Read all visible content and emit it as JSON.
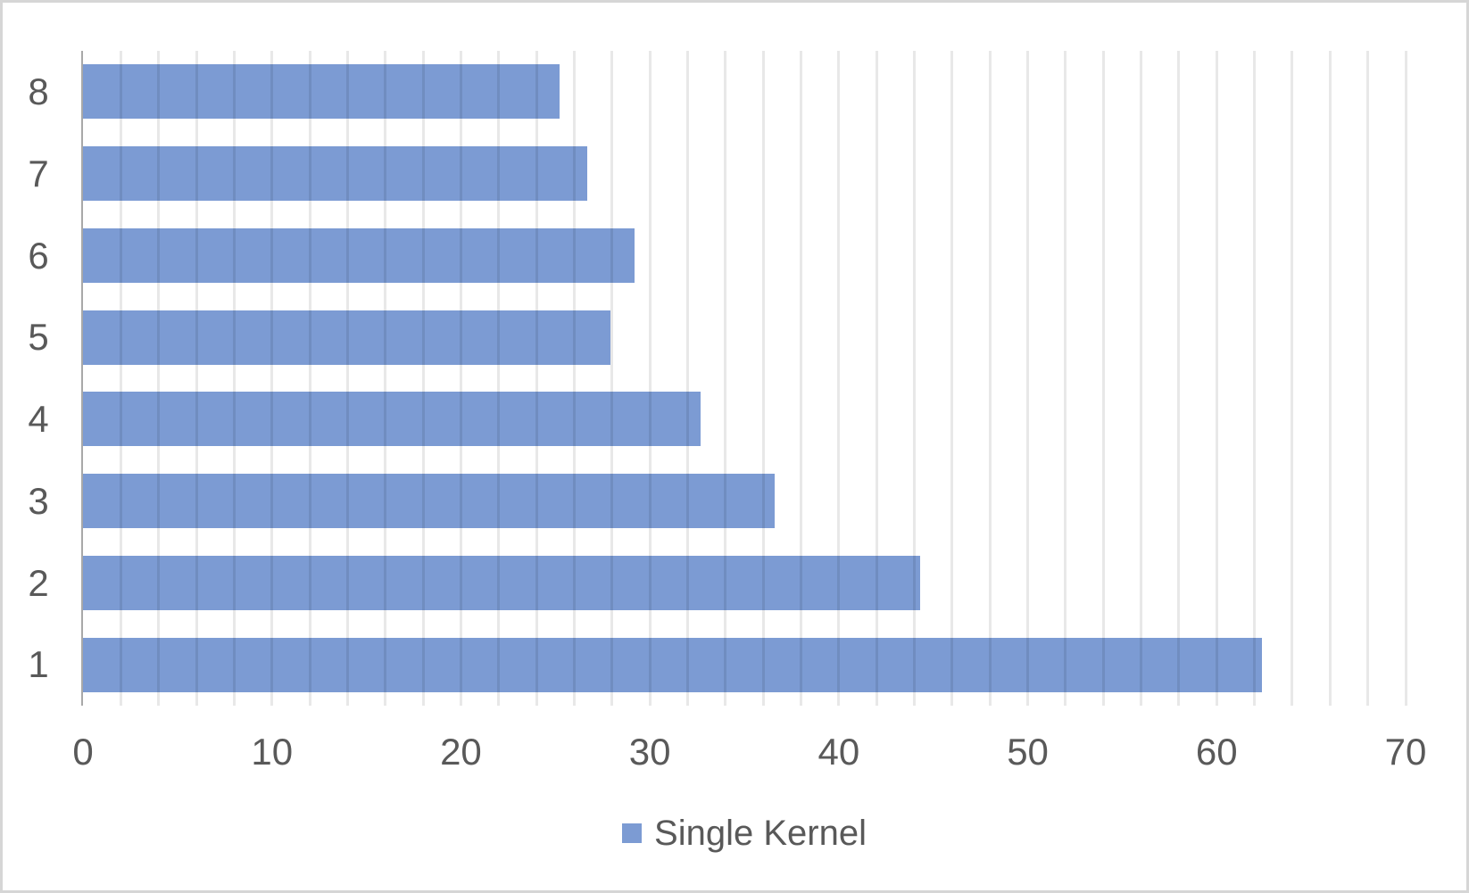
{
  "chart_data": {
    "type": "bar",
    "orientation": "horizontal",
    "title": "",
    "categories": [
      "1",
      "2",
      "3",
      "4",
      "5",
      "6",
      "7",
      "8"
    ],
    "series": [
      {
        "name": "Single Kernel",
        "color": "#7c9bd3",
        "values": [
          62.4,
          44.3,
          36.6,
          32.7,
          27.9,
          29.2,
          26.7,
          25.2
        ]
      }
    ],
    "axes": {
      "x": {
        "min": 0,
        "max": 70,
        "major_unit": 10,
        "minor_unit": 2,
        "tick_labels": [
          "0",
          "10",
          "20",
          "30",
          "40",
          "50",
          "60",
          "70"
        ]
      },
      "y": {
        "tick_labels_top_to_bottom": [
          "8",
          "7",
          "6",
          "5",
          "4",
          "3",
          "2",
          "1"
        ]
      }
    },
    "grid": {
      "vertical_minor_gridlines": true,
      "gridline_color": "#e8e8e8"
    },
    "legend": {
      "position": "bottom",
      "entries": [
        {
          "label": "Single Kernel",
          "marker_color": "#7c9bd3"
        }
      ]
    }
  },
  "colors": {
    "bar_fill": "#7c9bd3",
    "axis_line": "#a8a8a8",
    "label_text": "#595959",
    "frame_border": "#d6d6d6",
    "background": "#ffffff"
  }
}
